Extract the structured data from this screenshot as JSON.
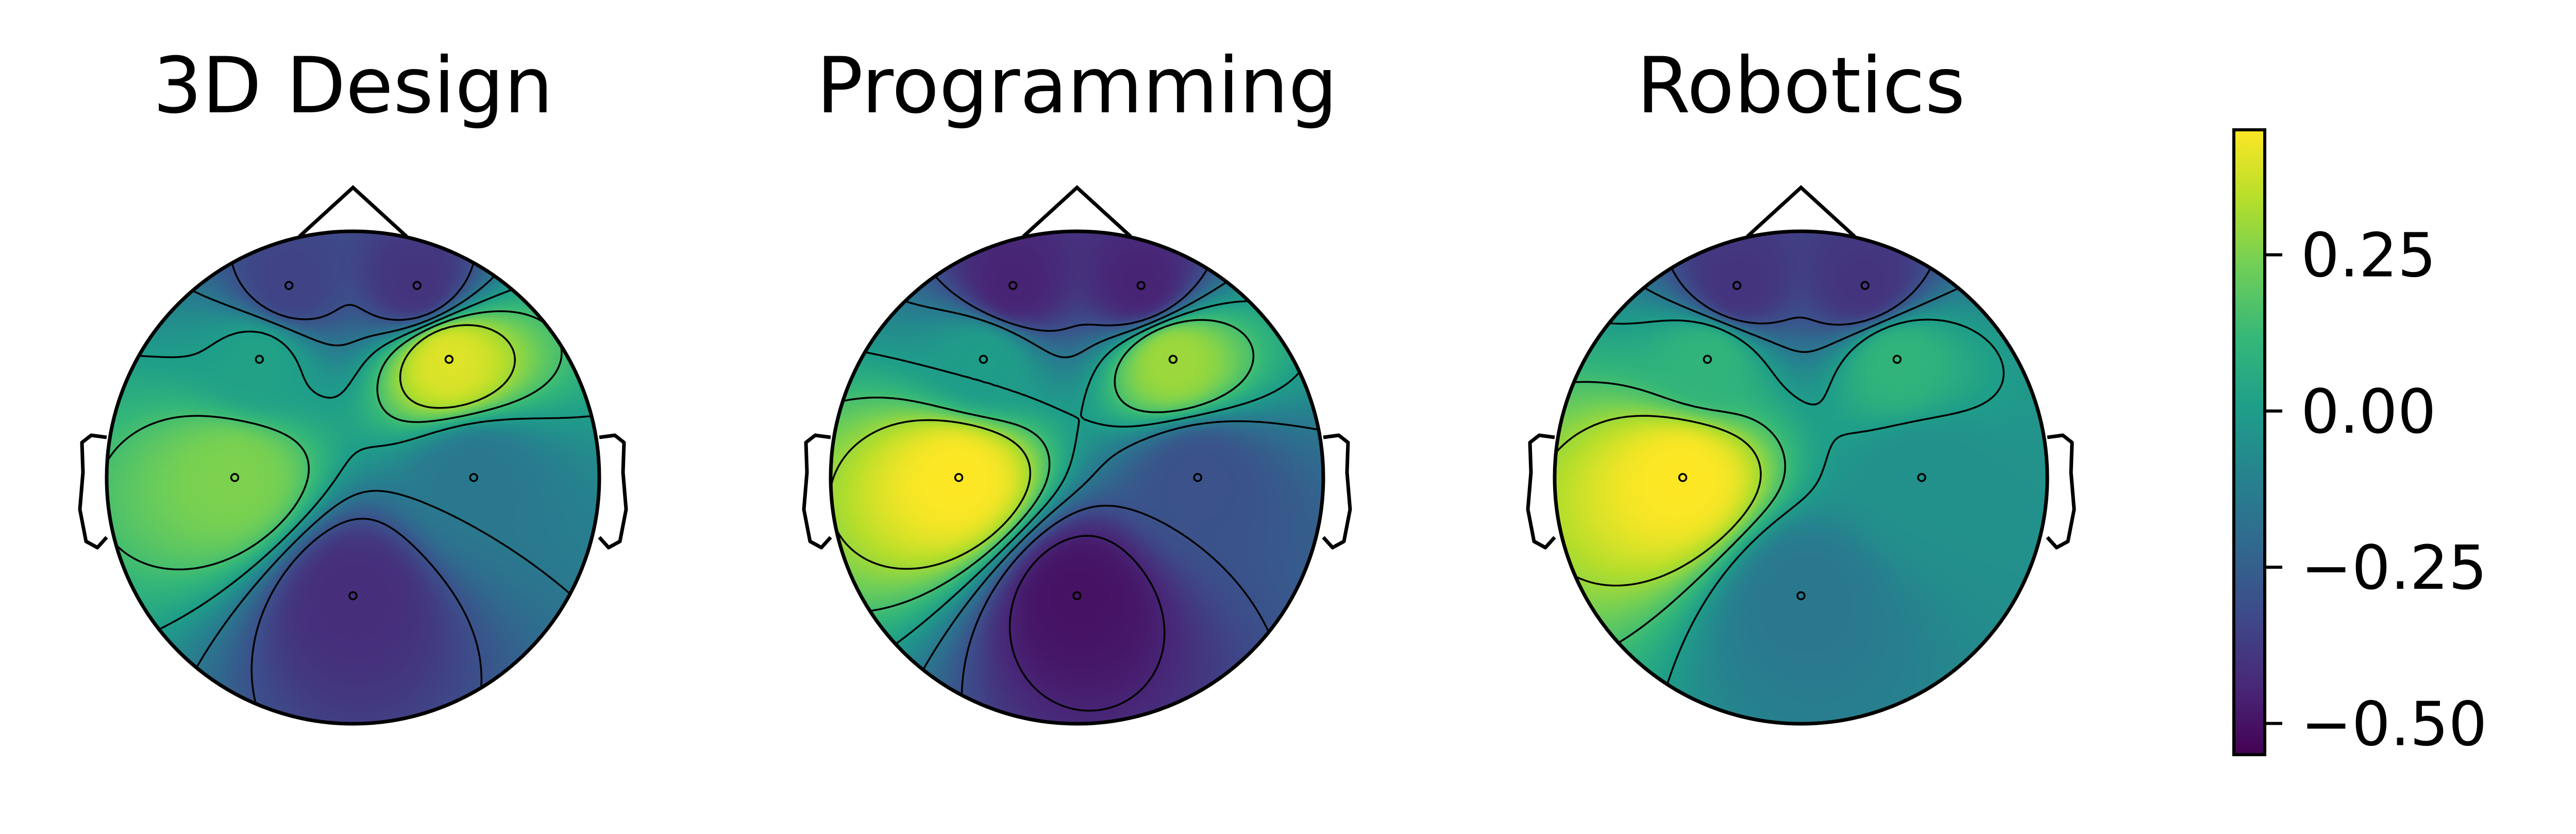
{
  "chart_data": {
    "type": "heatmap",
    "subtype": "eeg-topomap",
    "colormap": "viridis",
    "colormap_stops": [
      "#440154",
      "#482878",
      "#3e4a89",
      "#31688e",
      "#26828e",
      "#1f9e89",
      "#35b779",
      "#6ece58",
      "#b5de2b",
      "#fde725"
    ],
    "value_range": [
      -0.55,
      0.45
    ],
    "colorbar": {
      "ticks": [
        0.25,
        0.0,
        -0.25,
        -0.5
      ],
      "tick_labels": [
        "0.25",
        "0.00",
        "−0.25",
        "−0.50"
      ]
    },
    "sensors": [
      {
        "x": -0.26,
        "y": 0.78
      },
      {
        "x": 0.26,
        "y": 0.78
      },
      {
        "x": -0.38,
        "y": 0.48
      },
      {
        "x": 0.39,
        "y": 0.48
      },
      {
        "x": -0.48,
        "y": 0.0
      },
      {
        "x": 0.49,
        "y": 0.0
      },
      {
        "x": 0.0,
        "y": -0.48
      }
    ],
    "panels": [
      {
        "title": "3D Design",
        "sensor_values": [
          -0.35,
          -0.4,
          0.02,
          0.4,
          0.25,
          -0.15,
          -0.42
        ]
      },
      {
        "title": "Programming",
        "sensor_values": [
          -0.45,
          -0.45,
          0.0,
          0.3,
          0.45,
          -0.3,
          -0.5
        ]
      },
      {
        "title": "Robotics",
        "sensor_values": [
          -0.4,
          -0.4,
          0.1,
          0.1,
          0.45,
          -0.05,
          -0.15
        ]
      }
    ]
  }
}
